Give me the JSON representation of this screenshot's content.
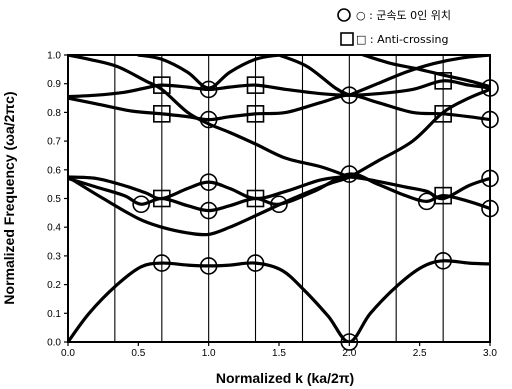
{
  "chart_data": {
    "type": "line",
    "xlabel": "Normalized k (ka/2π)",
    "ylabel": "Normalized Frequency (ωa/2πc)",
    "xlim": [
      0.0,
      3.0
    ],
    "ylim": [
      0.0,
      1.0
    ],
    "xticks": [
      "0.0",
      "0.5",
      "1.0",
      "1.5",
      "2.0",
      "2.5",
      "3.0"
    ],
    "yticks": [
      "0.0",
      "0.1",
      "0.2",
      "0.3",
      "0.4",
      "0.5",
      "0.6",
      "0.7",
      "0.8",
      "0.9",
      "1.0"
    ],
    "grid": false,
    "legend_position": "top-right",
    "legend": [
      {
        "marker": "circle",
        "label": "○ : 군속도 0인 위치"
      },
      {
        "marker": "square",
        "label": "□ : Anti-crossing"
      }
    ],
    "vertical_lines": [
      0.333,
      0.667,
      1.0,
      1.333,
      1.667,
      2.0,
      2.333,
      2.667
    ],
    "series": [
      {
        "values": [
          [
            0.0,
            0.0
          ],
          [
            0.15,
            0.1
          ],
          [
            0.35,
            0.2
          ],
          [
            0.52,
            0.262
          ],
          [
            0.667,
            0.275
          ],
          [
            0.85,
            0.268
          ],
          [
            1.0,
            0.265
          ],
          [
            1.15,
            0.268
          ],
          [
            1.333,
            0.275
          ],
          [
            1.52,
            0.25
          ],
          [
            1.68,
            0.18
          ],
          [
            1.85,
            0.09
          ],
          [
            2.0,
            0.0
          ],
          [
            2.15,
            0.1
          ],
          [
            2.35,
            0.2
          ],
          [
            2.52,
            0.262
          ],
          [
            2.667,
            0.283
          ],
          [
            2.85,
            0.275
          ],
          [
            3.0,
            0.272
          ]
        ]
      },
      {
        "values": [
          [
            0.0,
            0.57
          ],
          [
            0.2,
            0.54
          ],
          [
            0.4,
            0.51
          ],
          [
            0.52,
            0.48
          ],
          [
            0.667,
            0.5
          ],
          [
            0.85,
            0.475
          ],
          [
            1.0,
            0.458
          ],
          [
            1.15,
            0.475
          ],
          [
            1.333,
            0.5
          ],
          [
            1.5,
            0.48
          ],
          [
            1.75,
            0.525
          ],
          [
            2.0,
            0.585
          ],
          [
            2.2,
            0.55
          ],
          [
            2.4,
            0.51
          ],
          [
            2.55,
            0.49
          ],
          [
            2.667,
            0.51
          ],
          [
            2.85,
            0.49
          ],
          [
            3.0,
            0.465
          ]
        ]
      },
      {
        "values": [
          [
            0.0,
            0.575
          ],
          [
            0.2,
            0.57
          ],
          [
            0.4,
            0.545
          ],
          [
            0.55,
            0.52
          ],
          [
            0.667,
            0.5
          ],
          [
            0.85,
            0.535
          ],
          [
            1.0,
            0.557
          ],
          [
            1.15,
            0.535
          ],
          [
            1.333,
            0.5
          ],
          [
            1.55,
            0.525
          ],
          [
            1.8,
            0.565
          ],
          [
            2.0,
            0.575
          ],
          [
            2.2,
            0.56
          ],
          [
            2.4,
            0.54
          ],
          [
            2.55,
            0.525
          ],
          [
            2.667,
            0.5
          ],
          [
            2.85,
            0.545
          ],
          [
            3.0,
            0.57
          ]
        ]
      },
      {
        "values": [
          [
            0.0,
            0.85
          ],
          [
            0.2,
            0.83
          ],
          [
            0.45,
            0.805
          ],
          [
            0.667,
            0.795
          ],
          [
            0.85,
            0.785
          ],
          [
            1.0,
            0.775
          ],
          [
            1.15,
            0.785
          ],
          [
            1.333,
            0.795
          ],
          [
            1.55,
            0.8
          ],
          [
            1.8,
            0.835
          ],
          [
            2.0,
            0.86
          ],
          [
            2.2,
            0.835
          ],
          [
            2.45,
            0.8
          ],
          [
            2.667,
            0.795
          ],
          [
            2.85,
            0.785
          ],
          [
            3.0,
            0.775
          ]
        ]
      },
      {
        "values": [
          [
            0.0,
            0.855
          ],
          [
            0.2,
            0.86
          ],
          [
            0.4,
            0.87
          ],
          [
            0.55,
            0.885
          ],
          [
            0.667,
            0.895
          ],
          [
            0.85,
            0.888
          ],
          [
            1.0,
            0.88
          ],
          [
            1.15,
            0.888
          ],
          [
            1.333,
            0.895
          ],
          [
            1.55,
            0.88
          ],
          [
            1.8,
            0.865
          ],
          [
            2.0,
            0.86
          ],
          [
            2.2,
            0.865
          ],
          [
            2.45,
            0.88
          ],
          [
            2.667,
            0.91
          ],
          [
            2.85,
            0.895
          ],
          [
            3.0,
            0.885
          ]
        ]
      },
      {
        "values": [
          [
            0.0,
            0.575
          ],
          [
            0.25,
            0.5
          ],
          [
            0.5,
            0.43
          ],
          [
            0.667,
            0.4
          ],
          [
            0.85,
            0.38
          ],
          [
            1.0,
            0.375
          ],
          [
            1.15,
            0.4
          ],
          [
            1.333,
            0.44
          ],
          [
            1.6,
            0.5
          ],
          [
            1.85,
            0.55
          ],
          [
            2.0,
            0.575
          ],
          [
            2.2,
            0.63
          ],
          [
            2.45,
            0.7
          ],
          [
            2.667,
            0.8
          ],
          [
            2.85,
            0.85
          ],
          [
            3.0,
            0.88
          ]
        ]
      },
      {
        "values": [
          [
            0.0,
            1.0
          ],
          [
            0.15,
            0.985
          ],
          [
            0.35,
            0.96
          ],
          [
            0.55,
            0.91
          ],
          [
            0.667,
            0.88
          ],
          [
            0.85,
            0.8
          ],
          [
            1.0,
            0.76
          ],
          [
            1.15,
            0.73
          ],
          [
            1.333,
            0.69
          ],
          [
            1.55,
            0.64
          ],
          [
            1.8,
            0.61
          ],
          [
            2.0,
            0.575
          ]
        ]
      },
      {
        "values": [
          [
            0.5,
            1.0
          ],
          [
            0.667,
            0.985
          ],
          [
            0.85,
            0.94
          ],
          [
            1.0,
            0.885
          ],
          [
            1.15,
            0.94
          ],
          [
            1.333,
            0.985
          ],
          [
            1.5,
            1.0
          ]
        ]
      },
      {
        "values": [
          [
            1.5,
            1.0
          ],
          [
            1.7,
            0.96
          ],
          [
            1.9,
            0.885
          ],
          [
            2.0,
            0.86
          ]
        ]
      },
      {
        "values": [
          [
            2.0,
            0.86
          ],
          [
            2.2,
            0.9
          ],
          [
            2.4,
            0.94
          ],
          [
            2.6,
            0.97
          ],
          [
            2.8,
            0.99
          ],
          [
            3.0,
            1.0
          ]
        ]
      },
      {
        "values": [
          [
            2.1,
            1.0
          ],
          [
            2.3,
            0.97
          ],
          [
            2.5,
            0.95
          ],
          [
            2.667,
            0.93
          ],
          [
            2.85,
            0.91
          ],
          [
            3.0,
            0.89
          ]
        ]
      }
    ],
    "markers_circle": [
      [
        0.667,
        0.275
      ],
      [
        1.0,
        0.265
      ],
      [
        1.333,
        0.275
      ],
      [
        2.0,
        0.0
      ],
      [
        2.667,
        0.283
      ],
      [
        0.52,
        0.48
      ],
      [
        1.0,
        0.458
      ],
      [
        1.0,
        0.557
      ],
      [
        1.5,
        0.48
      ],
      [
        2.0,
        0.585
      ],
      [
        2.55,
        0.49
      ],
      [
        3.0,
        0.465
      ],
      [
        3.0,
        0.57
      ],
      [
        1.0,
        0.775
      ],
      [
        3.0,
        0.775
      ],
      [
        1.0,
        0.88
      ],
      [
        2.0,
        0.86
      ],
      [
        3.0,
        0.885
      ]
    ],
    "markers_square": [
      [
        0.667,
        0.5
      ],
      [
        1.333,
        0.5
      ],
      [
        2.667,
        0.51
      ],
      [
        0.667,
        0.795
      ],
      [
        1.333,
        0.795
      ],
      [
        2.667,
        0.795
      ],
      [
        0.667,
        0.895
      ],
      [
        1.333,
        0.895
      ],
      [
        2.667,
        0.91
      ]
    ]
  }
}
